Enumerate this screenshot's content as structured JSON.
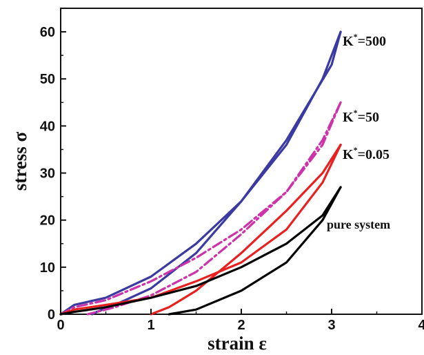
{
  "chart_data": {
    "type": "line",
    "xlabel": "strain ε",
    "ylabel": "stress σ",
    "xlim": [
      0,
      4
    ],
    "ylim": [
      0,
      65
    ],
    "x_ticks": [
      "0",
      "1",
      "2",
      "3",
      "4"
    ],
    "y_ticks": [
      "0",
      "10",
      "20",
      "30",
      "40",
      "50",
      "60"
    ],
    "grid": false,
    "legend": "inline labels at curve ends",
    "series": [
      {
        "name": "K*=500",
        "label_main": "K",
        "label_sup": "*",
        "label_rest": "=500",
        "color": "#3a3aa0",
        "style": "solid",
        "loading": [
          [
            0,
            0
          ],
          [
            0.15,
            2
          ],
          [
            0.5,
            3.5
          ],
          [
            1.0,
            8
          ],
          [
            1.5,
            15
          ],
          [
            2.0,
            24
          ],
          [
            2.5,
            37
          ],
          [
            3.0,
            53
          ],
          [
            3.1,
            60
          ]
        ],
        "unloading": [
          [
            3.1,
            60
          ],
          [
            2.9,
            50
          ],
          [
            2.5,
            36
          ],
          [
            2.0,
            24
          ],
          [
            1.5,
            13
          ],
          [
            1.0,
            5.5
          ],
          [
            0.6,
            2
          ],
          [
            0.4,
            0.5
          ],
          [
            0.35,
            0
          ]
        ]
      },
      {
        "name": "K*=50",
        "label_main": "K",
        "label_sup": "*",
        "label_rest": "=50",
        "color": "#cc33aa",
        "style": "dashdot",
        "loading": [
          [
            0,
            0
          ],
          [
            0.15,
            1.5
          ],
          [
            0.5,
            3
          ],
          [
            1.0,
            7
          ],
          [
            1.5,
            12
          ],
          [
            2.0,
            18
          ],
          [
            2.5,
            26
          ],
          [
            2.9,
            36
          ],
          [
            3.1,
            45
          ]
        ],
        "unloading": [
          [
            3.1,
            45
          ],
          [
            2.9,
            37
          ],
          [
            2.5,
            26
          ],
          [
            2.0,
            17
          ],
          [
            1.5,
            9
          ],
          [
            1.0,
            4
          ],
          [
            0.6,
            1.5
          ],
          [
            0.3,
            0
          ]
        ]
      },
      {
        "name": "K*=0.05",
        "label_main": "K",
        "label_sup": "*",
        "label_rest": "=0.05",
        "color": "#e82020",
        "style": "solid",
        "loading": [
          [
            0,
            0
          ],
          [
            0.15,
            1
          ],
          [
            0.5,
            2
          ],
          [
            1.0,
            3.5
          ],
          [
            1.5,
            7
          ],
          [
            2.0,
            11
          ],
          [
            2.5,
            18
          ],
          [
            2.9,
            28
          ],
          [
            3.1,
            36
          ]
        ],
        "unloading": [
          [
            3.1,
            36
          ],
          [
            2.9,
            30
          ],
          [
            2.5,
            22
          ],
          [
            2.0,
            13
          ],
          [
            1.5,
            5
          ],
          [
            1.2,
            1.5
          ],
          [
            1.0,
            0
          ]
        ]
      },
      {
        "name": "pure system",
        "label_main": "pure system",
        "label_sup": "",
        "label_rest": "",
        "color": "#000000",
        "style": "solid",
        "loading": [
          [
            0,
            0
          ],
          [
            0.15,
            0.5
          ],
          [
            0.5,
            1.5
          ],
          [
            1.0,
            3.5
          ],
          [
            1.5,
            6
          ],
          [
            2.0,
            10
          ],
          [
            2.5,
            15
          ],
          [
            2.9,
            21
          ],
          [
            3.1,
            27
          ]
        ],
        "unloading": [
          [
            3.1,
            27
          ],
          [
            2.9,
            20
          ],
          [
            2.5,
            11
          ],
          [
            2.0,
            5
          ],
          [
            1.5,
            1
          ],
          [
            1.2,
            0
          ]
        ]
      }
    ]
  }
}
